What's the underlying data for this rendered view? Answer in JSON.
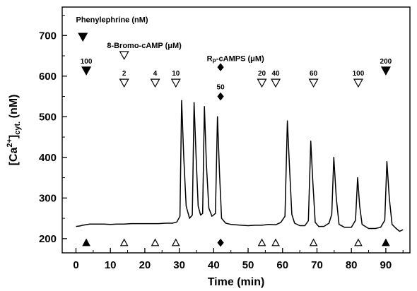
{
  "chart_data": {
    "type": "line",
    "xlabel": "Time (min)",
    "ylabel_main": "[Ca",
    "ylabel_sup": "2+",
    "ylabel_close": "]",
    "ylabel_sub": "cyt.",
    "ylabel_unit": " (nM)",
    "xlim": [
      -4,
      97
    ],
    "ylim": [
      165,
      770
    ],
    "x_ticks": [
      0,
      10,
      20,
      30,
      40,
      50,
      60,
      70,
      80,
      90
    ],
    "y_ticks": [
      200,
      300,
      400,
      500,
      600,
      700
    ],
    "grid": false,
    "series": [
      {
        "color": "#000000",
        "points": [
          [
            0,
            230
          ],
          [
            1,
            231
          ],
          [
            2,
            233
          ],
          [
            4,
            236
          ],
          [
            6,
            236
          ],
          [
            8,
            236
          ],
          [
            10,
            235
          ],
          [
            12,
            236
          ],
          [
            14,
            236
          ],
          [
            16,
            237
          ],
          [
            18,
            237
          ],
          [
            20,
            237
          ],
          [
            22,
            237
          ],
          [
            24,
            237
          ],
          [
            26,
            238
          ],
          [
            28,
            238
          ],
          [
            29.3,
            241
          ],
          [
            30.2,
            255
          ],
          [
            30.7,
            540
          ],
          [
            31.3,
            400
          ],
          [
            32,
            280
          ],
          [
            33,
            250
          ],
          [
            33.8,
            258
          ],
          [
            34.3,
            535
          ],
          [
            34.9,
            400
          ],
          [
            35.5,
            280
          ],
          [
            36.2,
            258
          ],
          [
            36.8,
            262
          ],
          [
            37.3,
            525
          ],
          [
            37.9,
            380
          ],
          [
            38.6,
            275
          ],
          [
            39.5,
            255
          ],
          [
            40.5,
            262
          ],
          [
            41.1,
            500
          ],
          [
            41.7,
            360
          ],
          [
            42.3,
            250
          ],
          [
            43.5,
            238
          ],
          [
            45,
            235
          ],
          [
            48,
            233
          ],
          [
            50,
            232
          ],
          [
            52,
            233
          ],
          [
            54,
            233
          ],
          [
            56,
            235
          ],
          [
            58,
            234
          ],
          [
            59.5,
            240
          ],
          [
            60.7,
            255
          ],
          [
            61.4,
            490
          ],
          [
            62,
            380
          ],
          [
            62.7,
            260
          ],
          [
            63.5,
            238
          ],
          [
            65,
            232
          ],
          [
            66.5,
            232
          ],
          [
            67.5,
            244
          ],
          [
            68.2,
            440
          ],
          [
            68.8,
            340
          ],
          [
            69.5,
            240
          ],
          [
            70.5,
            230
          ],
          [
            72,
            230
          ],
          [
            73.5,
            238
          ],
          [
            74.3,
            260
          ],
          [
            74.9,
            400
          ],
          [
            75.6,
            300
          ],
          [
            76.4,
            235
          ],
          [
            78,
            228
          ],
          [
            80,
            228
          ],
          [
            81.2,
            245
          ],
          [
            81.8,
            350
          ],
          [
            82.4,
            280
          ],
          [
            83.1,
            235
          ],
          [
            85,
            225
          ],
          [
            87,
            225
          ],
          [
            88.5,
            228
          ],
          [
            89.7,
            245
          ],
          [
            90.3,
            390
          ],
          [
            91,
            300
          ],
          [
            91.8,
            235
          ],
          [
            93,
            225
          ],
          [
            94,
            218
          ],
          [
            95,
            222
          ]
        ]
      }
    ],
    "legend_labels": [
      {
        "key": "phenylephrine",
        "text": "Phenylephrine (nM)",
        "x": 0,
        "y": 733
      },
      {
        "key": "bromo",
        "text": "8-Bromo-cAMP (μM)",
        "x": 9,
        "y": 669
      },
      {
        "key": "rp",
        "text_main": "R",
        "text_sub": "P",
        "text_rest": "-cAMPS (μM)",
        "x": 38,
        "y": 637
      }
    ],
    "markers_top": [
      {
        "x": 2,
        "y": 695,
        "shape": "tri-down-filled"
      },
      {
        "x": 14,
        "y": 650,
        "shape": "tri-down-open"
      },
      {
        "x": 42,
        "y": 622,
        "shape": "diamond"
      },
      {
        "x": 3,
        "y": 612,
        "shape": "tri-down-filled",
        "label": "100"
      },
      {
        "x": 14,
        "y": 582,
        "shape": "tri-down-open",
        "label": "2"
      },
      {
        "x": 23,
        "y": 582,
        "shape": "tri-down-open",
        "label": "4"
      },
      {
        "x": 29,
        "y": 582,
        "shape": "tri-down-open",
        "label": "10"
      },
      {
        "x": 42,
        "y": 550,
        "shape": "diamond",
        "label": "50"
      },
      {
        "x": 54,
        "y": 582,
        "shape": "tri-down-open",
        "label": "20"
      },
      {
        "x": 58,
        "y": 582,
        "shape": "tri-down-open",
        "label": "40"
      },
      {
        "x": 69,
        "y": 582,
        "shape": "tri-down-open",
        "label": "60"
      },
      {
        "x": 82,
        "y": 582,
        "shape": "tri-down-open",
        "label": "100"
      },
      {
        "x": 90,
        "y": 612,
        "shape": "tri-down-filled",
        "label": "200"
      }
    ],
    "markers_bottom": [
      {
        "x": 3,
        "shape": "tri-up-filled"
      },
      {
        "x": 14,
        "shape": "tri-up-open"
      },
      {
        "x": 23,
        "shape": "tri-up-open"
      },
      {
        "x": 29,
        "shape": "tri-up-open"
      },
      {
        "x": 42,
        "shape": "diamond"
      },
      {
        "x": 54,
        "shape": "tri-up-open"
      },
      {
        "x": 58,
        "shape": "tri-up-open"
      },
      {
        "x": 69,
        "shape": "tri-up-open"
      },
      {
        "x": 82,
        "shape": "tri-up-open"
      },
      {
        "x": 90,
        "shape": "tri-up-filled"
      }
    ],
    "bottom_marker_y": 190
  }
}
